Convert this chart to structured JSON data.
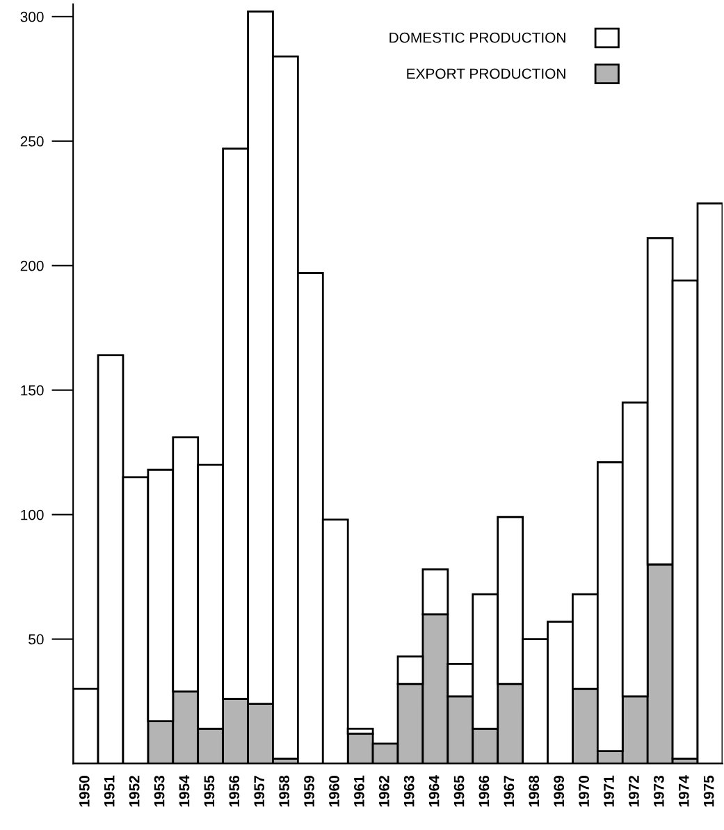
{
  "chart_data": {
    "type": "bar",
    "stacked": true,
    "categories": [
      "1950",
      "1951",
      "1952",
      "1953",
      "1954",
      "1955",
      "1956",
      "1957",
      "1958",
      "1959",
      "1960",
      "1961",
      "1962",
      "1963",
      "1964",
      "1965",
      "1966",
      "1967",
      "1968",
      "1969",
      "1970",
      "1971",
      "1972",
      "1973",
      "1974",
      "1975"
    ],
    "series": [
      {
        "name": "EXPORT PRODUCTION",
        "color": "#b4b4b4",
        "values": [
          0,
          0,
          0,
          17,
          29,
          14,
          26,
          24,
          2,
          0,
          0,
          12,
          8,
          32,
          60,
          27,
          14,
          32,
          0,
          0,
          30,
          5,
          27,
          80,
          2,
          0
        ]
      },
      {
        "name": "DOMESTIC PRODUCTION",
        "color": "#ffffff",
        "values": [
          30,
          164,
          115,
          101,
          102,
          106,
          221,
          278,
          282,
          197,
          98,
          2,
          0,
          11,
          18,
          13,
          54,
          67,
          50,
          57,
          38,
          116,
          118,
          131,
          192,
          225
        ]
      }
    ],
    "ylim": [
      0,
      305
    ],
    "yticks": [
      50,
      100,
      150,
      200,
      250,
      300
    ],
    "grid": false,
    "legend": "top right"
  }
}
